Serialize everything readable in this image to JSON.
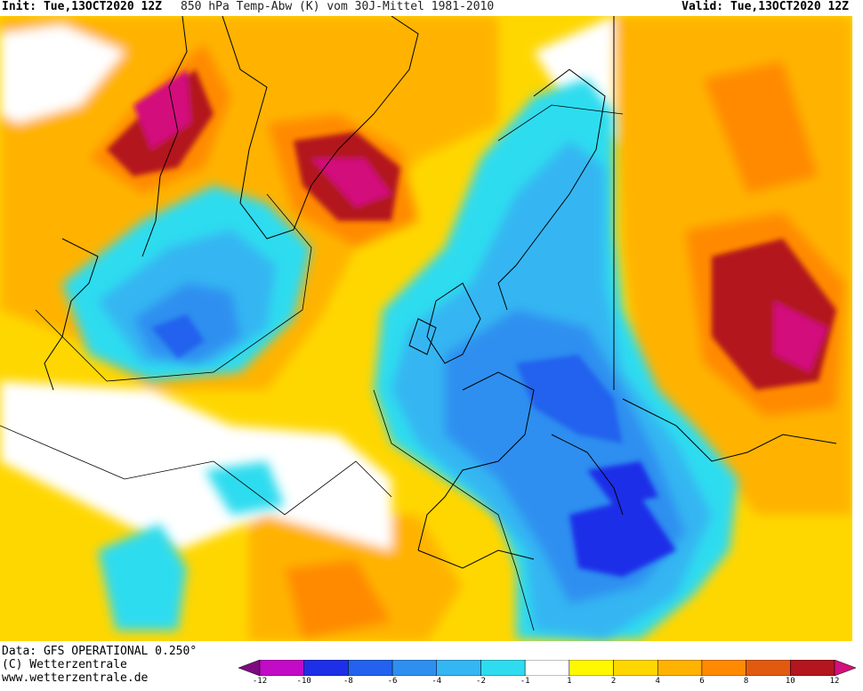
{
  "header": {
    "init": "Init: Tue,13OCT2020 12Z",
    "title": "850 hPa Temp-Abw (K) vom 30J-Mittel 1981-2010",
    "valid": "Valid: Tue,13OCT2020 12Z"
  },
  "footer": {
    "data_source": "Data: GFS OPERATIONAL 0.250°",
    "copyright": "(C) Wetterzentrale",
    "website": "www.wetterzentrale.de"
  },
  "legend": {
    "ticks": [
      "-12",
      "-10",
      "-8",
      "-6",
      "-4",
      "-2",
      "-1",
      "1",
      "2",
      "4",
      "6",
      "8",
      "10",
      "12"
    ],
    "colors": [
      "#7d0a80",
      "#c10bc6",
      "#1e2fe8",
      "#2262ee",
      "#2f8ff0",
      "#34b6f2",
      "#2fdcef",
      "#ffffff",
      "#fff800",
      "#ffd700",
      "#ffb300",
      "#ff8a00",
      "#e25a10",
      "#b3161e",
      "#d3107c"
    ]
  },
  "map_colors": {
    "ocean_neutral": "#ffffff",
    "warm_light": "#fff800",
    "warm_mid": "#ffd700",
    "warm_orange": "#ffb300",
    "warm_dark_orange": "#ff8a00",
    "warm_red": "#e25a10",
    "warm_dark_red": "#b3161e",
    "warm_magenta": "#d3107c",
    "cold_cyan": "#2fdcef",
    "cold_light_blue": "#34b6f2",
    "cold_blue": "#2f8ff0",
    "cold_mid_blue": "#2262ee",
    "cold_deep_blue": "#1e2fe8"
  }
}
